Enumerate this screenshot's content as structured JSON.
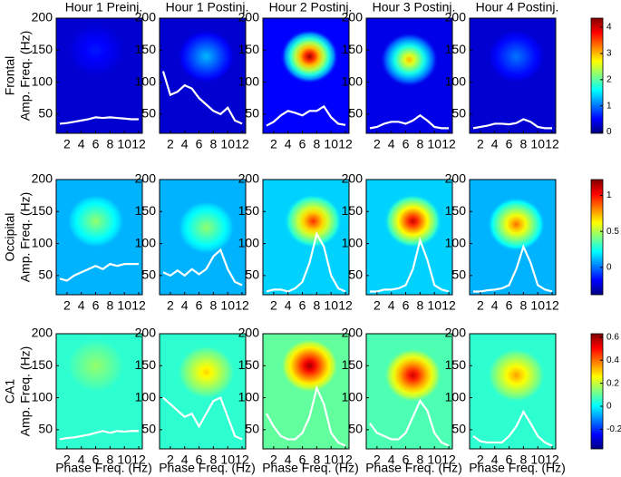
{
  "chart_data": [
    {
      "type": "heatmap",
      "title": "Hour 1 Preinj.",
      "row_label": "Frontal",
      "ylabel": "Amp. Freq. (Hz)",
      "background": 0.3,
      "peak": {
        "x": 6,
        "y": 150,
        "value": 0.6
      },
      "x": [
        1,
        2,
        3,
        4,
        5,
        6,
        7,
        8,
        9,
        10,
        11,
        12
      ],
      "series": [
        {
          "color": "#ffffff",
          "values": [
            35,
            36,
            38,
            40,
            42,
            45,
            44,
            45,
            44,
            43,
            42,
            42
          ]
        }
      ],
      "xlim": [
        0.5,
        12.5
      ],
      "ylim": [
        20,
        200
      ],
      "xticks": [
        2,
        4,
        6,
        8,
        10,
        12
      ],
      "yticks": [
        50,
        100,
        150,
        200
      ]
    },
    {
      "type": "heatmap",
      "title": "Hour 1 Postinj.",
      "background": 0.3,
      "peak": {
        "x": 7,
        "y": 140,
        "value": 1.3
      },
      "x": [
        1,
        2,
        3,
        4,
        5,
        6,
        7,
        8,
        9,
        10,
        11,
        12
      ],
      "series": [
        {
          "color": "#ffffff",
          "values": [
            117,
            80,
            85,
            95,
            90,
            75,
            65,
            55,
            50,
            60,
            40,
            35
          ]
        }
      ],
      "xlim": [
        0.5,
        12.5
      ],
      "ylim": [
        20,
        200
      ],
      "xticks": [
        2,
        4,
        6,
        8,
        10,
        12
      ],
      "yticks": [
        50,
        100,
        150,
        200
      ]
    },
    {
      "type": "heatmap",
      "title": "Hour 2 Postinj.",
      "background": 0.5,
      "peak": {
        "x": 7,
        "y": 140,
        "value": 4.2
      },
      "x": [
        1,
        2,
        3,
        4,
        5,
        6,
        7,
        8,
        9,
        10,
        11,
        12
      ],
      "series": [
        {
          "color": "#ffffff",
          "values": [
            32,
            38,
            48,
            55,
            52,
            48,
            55,
            55,
            62,
            45,
            35,
            33
          ]
        }
      ],
      "xlim": [
        0.5,
        12.5
      ],
      "ylim": [
        20,
        200
      ],
      "xticks": [
        2,
        4,
        6,
        8,
        10,
        12
      ],
      "yticks": [
        50,
        100,
        150,
        200
      ]
    },
    {
      "type": "heatmap",
      "title": "Hour 3 Postinj.",
      "background": 0.4,
      "peak": {
        "x": 6.5,
        "y": 135,
        "value": 3.0
      },
      "x": [
        1,
        2,
        3,
        4,
        5,
        6,
        7,
        8,
        9,
        10,
        11,
        12
      ],
      "series": [
        {
          "color": "#ffffff",
          "values": [
            28,
            30,
            35,
            38,
            38,
            35,
            40,
            48,
            40,
            30,
            28,
            28
          ]
        }
      ],
      "xlim": [
        0.5,
        12.5
      ],
      "ylim": [
        20,
        200
      ],
      "xticks": [
        2,
        4,
        6,
        8,
        10,
        12
      ],
      "yticks": [
        50,
        100,
        150,
        200
      ]
    },
    {
      "type": "heatmap",
      "title": "Hour 4 Postinj.",
      "background": 0.3,
      "peak": {
        "x": 7,
        "y": 140,
        "value": 1.0
      },
      "x": [
        1,
        2,
        3,
        4,
        5,
        6,
        7,
        8,
        9,
        10,
        11,
        12
      ],
      "series": [
        {
          "color": "#ffffff",
          "values": [
            28,
            30,
            32,
            35,
            35,
            34,
            36,
            42,
            38,
            30,
            28,
            28
          ]
        }
      ],
      "xlim": [
        0.5,
        12.5
      ],
      "ylim": [
        20,
        200
      ],
      "xticks": [
        2,
        4,
        6,
        8,
        10,
        12
      ],
      "yticks": [
        50,
        100,
        150,
        200
      ],
      "clim": [
        -0.05,
        4.35
      ],
      "cticks": [
        0,
        1,
        2,
        3,
        4
      ]
    },
    {
      "type": "heatmap",
      "row_label": "Occipital",
      "ylabel": "Amp. Freq. (Hz)",
      "background": 0.1,
      "peak": {
        "x": 6,
        "y": 135,
        "value": 0.45
      },
      "x": [
        1,
        2,
        3,
        4,
        5,
        6,
        7,
        8,
        9,
        10,
        11,
        12
      ],
      "series": [
        {
          "color": "#ffffff",
          "values": [
            45,
            42,
            50,
            55,
            60,
            65,
            60,
            68,
            65,
            68,
            68,
            68
          ]
        }
      ],
      "xlim": [
        0.5,
        12.5
      ],
      "ylim": [
        20,
        200
      ],
      "xticks": [
        2,
        4,
        6,
        8,
        10,
        12
      ],
      "yticks": [
        50,
        100,
        150,
        200
      ]
    },
    {
      "type": "heatmap",
      "background": 0.1,
      "peak": {
        "x": 7,
        "y": 125,
        "value": 0.45
      },
      "x": [
        1,
        2,
        3,
        4,
        5,
        6,
        7,
        8,
        9,
        10,
        11,
        12
      ],
      "series": [
        {
          "color": "#ffffff",
          "values": [
            55,
            50,
            58,
            50,
            60,
            52,
            60,
            80,
            90,
            60,
            40,
            35
          ]
        }
      ],
      "xlim": [
        0.5,
        12.5
      ],
      "ylim": [
        20,
        200
      ],
      "xticks": [
        2,
        4,
        6,
        8,
        10,
        12
      ],
      "yticks": [
        50,
        100,
        150,
        200
      ]
    },
    {
      "type": "heatmap",
      "background": 0.15,
      "peak": {
        "x": 7.5,
        "y": 135,
        "value": 0.95
      },
      "x": [
        1,
        2,
        3,
        4,
        5,
        6,
        7,
        8,
        9,
        10,
        11,
        12
      ],
      "series": [
        {
          "color": "#ffffff",
          "values": [
            25,
            28,
            28,
            25,
            30,
            40,
            70,
            115,
            95,
            50,
            30,
            25
          ]
        }
      ],
      "xlim": [
        0.5,
        12.5
      ],
      "ylim": [
        20,
        200
      ],
      "xticks": [
        2,
        4,
        6,
        8,
        10,
        12
      ],
      "yticks": [
        50,
        100,
        150,
        200
      ]
    },
    {
      "type": "heatmap",
      "background": 0.15,
      "peak": {
        "x": 7,
        "y": 135,
        "value": 1.1
      },
      "x": [
        1,
        2,
        3,
        4,
        5,
        6,
        7,
        8,
        9,
        10,
        11,
        12
      ],
      "series": [
        {
          "color": "#ffffff",
          "values": [
            25,
            25,
            28,
            28,
            30,
            35,
            60,
            105,
            75,
            35,
            28,
            25
          ]
        }
      ],
      "xlim": [
        0.5,
        12.5
      ],
      "ylim": [
        20,
        200
      ],
      "xticks": [
        2,
        4,
        6,
        8,
        10,
        12
      ],
      "yticks": [
        50,
        100,
        150,
        200
      ]
    },
    {
      "type": "heatmap",
      "background": 0.1,
      "peak": {
        "x": 7,
        "y": 130,
        "value": 0.85
      },
      "x": [
        1,
        2,
        3,
        4,
        5,
        6,
        7,
        8,
        9,
        10,
        11,
        12
      ],
      "series": [
        {
          "color": "#ffffff",
          "values": [
            25,
            25,
            27,
            28,
            30,
            35,
            60,
            95,
            70,
            35,
            28,
            25
          ]
        }
      ],
      "xlim": [
        0.5,
        12.5
      ],
      "ylim": [
        20,
        200
      ],
      "xticks": [
        2,
        4,
        6,
        8,
        10,
        12
      ],
      "yticks": [
        50,
        100,
        150,
        200
      ],
      "clim": [
        -0.38,
        1.22
      ],
      "cticks": [
        0,
        0.5,
        1
      ]
    },
    {
      "type": "heatmap",
      "row_label": "CA1",
      "ylabel": "Amp. Freq. (Hz)",
      "xlabel": "Phase Freq. (Hz)",
      "background": 0.05,
      "peak": {
        "x": 6,
        "y": 150,
        "value": 0.15
      },
      "x": [
        1,
        2,
        3,
        4,
        5,
        6,
        7,
        8,
        9,
        10,
        11,
        12
      ],
      "series": [
        {
          "color": "#ffffff",
          "values": [
            35,
            37,
            38,
            40,
            42,
            45,
            48,
            45,
            48,
            47,
            48,
            48
          ]
        }
      ],
      "xlim": [
        0.5,
        12.5
      ],
      "ylim": [
        20,
        200
      ],
      "xticks": [
        2,
        4,
        6,
        8,
        10,
        12
      ],
      "yticks": [
        50,
        100,
        150,
        200
      ]
    },
    {
      "type": "heatmap",
      "xlabel": "Phase Freq. (Hz)",
      "background": 0.05,
      "peak": {
        "x": 7,
        "y": 140,
        "value": 0.3
      },
      "x": [
        1,
        2,
        3,
        4,
        5,
        6,
        7,
        8,
        9,
        10,
        11,
        12
      ],
      "series": [
        {
          "color": "#ffffff",
          "values": [
            100,
            90,
            80,
            70,
            75,
            55,
            75,
            95,
            100,
            70,
            40,
            35
          ]
        }
      ],
      "xlim": [
        0.5,
        12.5
      ],
      "ylim": [
        20,
        200
      ],
      "xticks": [
        2,
        4,
        6,
        8,
        10,
        12
      ],
      "yticks": [
        50,
        100,
        150,
        200
      ]
    },
    {
      "type": "heatmap",
      "xlabel": "Phase Freq. (Hz)",
      "background": 0.1,
      "peak": {
        "x": 7,
        "y": 150,
        "value": 0.6
      },
      "x": [
        1,
        2,
        3,
        4,
        5,
        6,
        7,
        8,
        9,
        10,
        11,
        12
      ],
      "series": [
        {
          "color": "#ffffff",
          "values": [
            75,
            55,
            40,
            35,
            35,
            45,
            70,
            115,
            90,
            45,
            30,
            25
          ]
        }
      ],
      "xlim": [
        0.5,
        12.5
      ],
      "ylim": [
        20,
        200
      ],
      "xticks": [
        2,
        4,
        6,
        8,
        10,
        12
      ],
      "yticks": [
        50,
        100,
        150,
        200
      ]
    },
    {
      "type": "heatmap",
      "xlabel": "Phase Freq. (Hz)",
      "background": 0.08,
      "peak": {
        "x": 7,
        "y": 135,
        "value": 0.55
      },
      "x": [
        1,
        2,
        3,
        4,
        5,
        6,
        7,
        8,
        9,
        10,
        11,
        12
      ],
      "series": [
        {
          "color": "#ffffff",
          "values": [
            60,
            45,
            40,
            35,
            35,
            45,
            70,
            95,
            80,
            45,
            30,
            25
          ]
        }
      ],
      "xlim": [
        0.5,
        12.5
      ],
      "ylim": [
        20,
        200
      ],
      "xticks": [
        2,
        4,
        6,
        8,
        10,
        12
      ],
      "yticks": [
        50,
        100,
        150,
        200
      ]
    },
    {
      "type": "heatmap",
      "xlabel": "Phase Freq. (Hz)",
      "background": 0.05,
      "peak": {
        "x": 7,
        "y": 135,
        "value": 0.35
      },
      "x": [
        1,
        2,
        3,
        4,
        5,
        6,
        7,
        8,
        9,
        10,
        11,
        12
      ],
      "series": [
        {
          "color": "#ffffff",
          "values": [
            40,
            32,
            30,
            30,
            30,
            40,
            55,
            78,
            60,
            40,
            30,
            25
          ]
        }
      ],
      "xlim": [
        0.5,
        12.5
      ],
      "ylim": [
        20,
        200
      ],
      "xticks": [
        2,
        4,
        6,
        8,
        10,
        12
      ],
      "yticks": [
        50,
        100,
        150,
        200
      ],
      "clim": [
        -0.37,
        0.63
      ],
      "cticks": [
        -0.2,
        0,
        0.2,
        0.4,
        0.6
      ]
    }
  ]
}
